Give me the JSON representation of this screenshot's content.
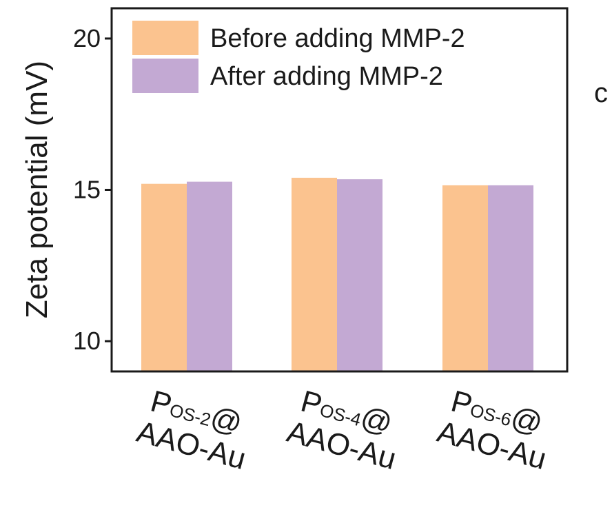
{
  "chart_data": {
    "type": "bar",
    "ylabel": "Zeta potential (mV)",
    "xlabel": "",
    "ylim": [
      9,
      21
    ],
    "yticks": [
      10,
      15,
      20
    ],
    "categories": [
      {
        "main": "P",
        "sub": "OS-2",
        "suffix": "@",
        "line2": "AAO-Au"
      },
      {
        "main": "P",
        "sub": "OS-4",
        "suffix": "@",
        "line2": "AAO-Au"
      },
      {
        "main": "P",
        "sub": "OS-6",
        "suffix": "@",
        "line2": "AAO-Au"
      }
    ],
    "series": [
      {
        "name": "Before adding MMP-2",
        "color": "#fbc38f",
        "values": [
          15.2,
          15.4,
          15.15
        ]
      },
      {
        "name": "After adding MMP-2",
        "color": "#c3a9d3",
        "values": [
          15.27,
          15.35,
          15.15
        ]
      }
    ],
    "legend_position": "top-left",
    "grid": false
  },
  "stray_label": "c"
}
